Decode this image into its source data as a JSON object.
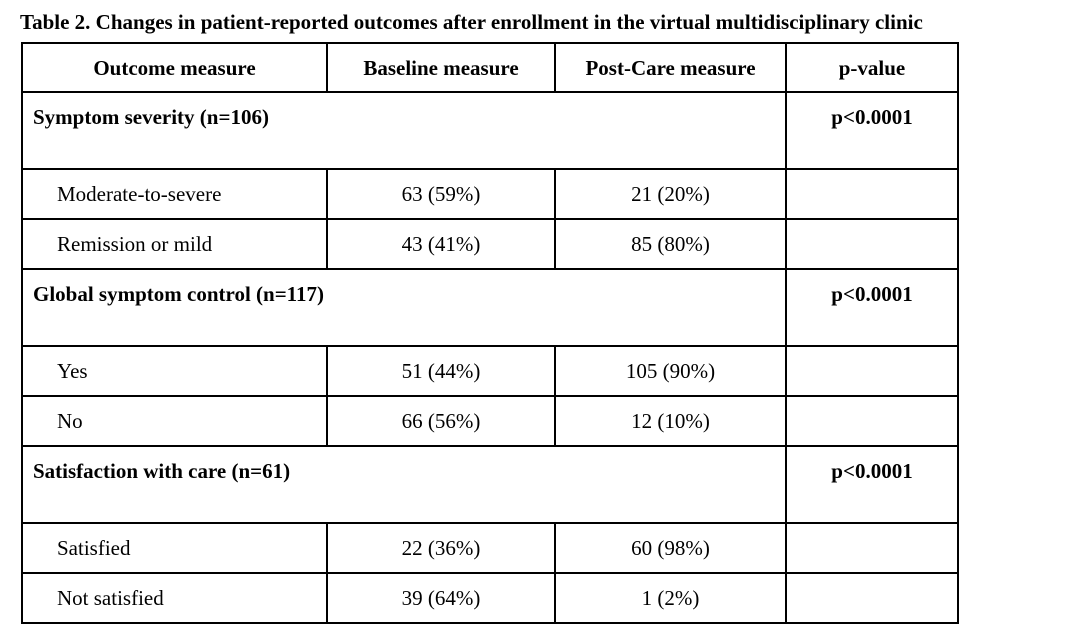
{
  "table": {
    "caption": "Table 2. Changes in patient-reported outcomes after enrollment in the virtual multidisciplinary clinic",
    "headers": {
      "outcome": "Outcome measure",
      "baseline": "Baseline measure",
      "post_care": "Post-Care measure",
      "p_value": "p-value"
    },
    "groups": [
      {
        "label": "Symptom severity (n=106)",
        "p_value": "p<0.0001",
        "rows": [
          {
            "label": "Moderate-to-severe",
            "baseline": "63 (59%)",
            "post_care": "21 (20%)"
          },
          {
            "label": "Remission or mild",
            "baseline": "43 (41%)",
            "post_care": "85 (80%)"
          }
        ]
      },
      {
        "label": "Global symptom control (n=117)",
        "p_value": "p<0.0001",
        "rows": [
          {
            "label": "Yes",
            "baseline": "51 (44%)",
            "post_care": "105 (90%)"
          },
          {
            "label": "No",
            "baseline": "66 (56%)",
            "post_care": "12 (10%)"
          }
        ]
      },
      {
        "label": "Satisfaction with care (n=61)",
        "p_value": "p<0.0001",
        "rows": [
          {
            "label": "Satisfied",
            "baseline": "22 (36%)",
            "post_care": "60 (98%)"
          },
          {
            "label": "Not satisfied",
            "baseline": "39 (64%)",
            "post_care": "1 (2%)"
          }
        ]
      }
    ]
  }
}
